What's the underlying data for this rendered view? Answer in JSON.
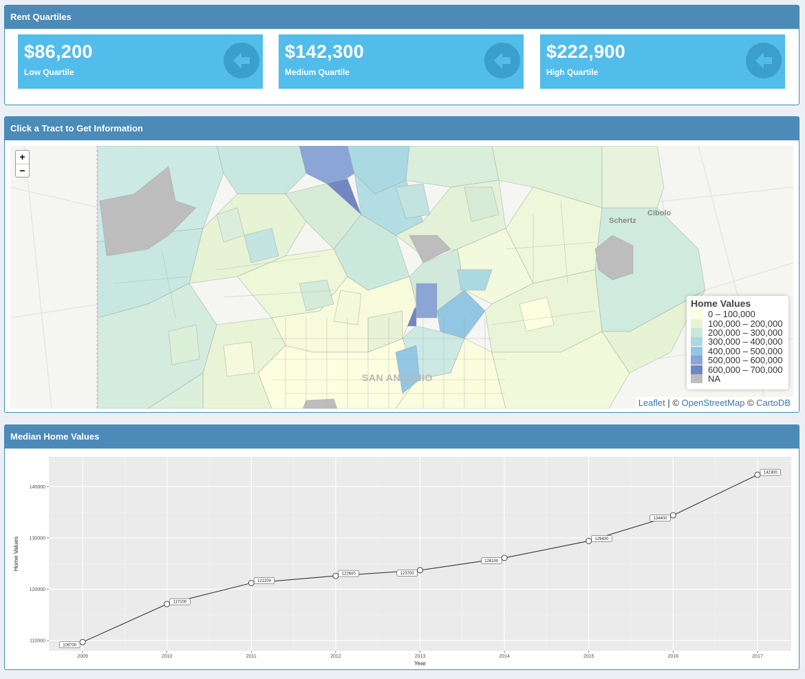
{
  "rent_quartiles": {
    "title": "Rent Quartiles",
    "boxes": [
      {
        "value": "$86,200",
        "label": "Low Quartile",
        "icon": "arrow-left-icon"
      },
      {
        "value": "$142,300",
        "label": "Medium Quartile",
        "icon": "arrow-left-icon"
      },
      {
        "value": "$222,900",
        "label": "High Quartile",
        "icon": "arrow-left-icon"
      }
    ],
    "colors": {
      "box": "#52bdeb",
      "icon_bg": "#3a9fcc"
    }
  },
  "map": {
    "title": "Click a Tract to Get Information",
    "zoom_in": "+",
    "zoom_out": "−",
    "labels": {
      "city": "SAN ANTONIO",
      "town1": "Schertz",
      "town2": "Cibolo"
    },
    "legend": {
      "title": "Home Values",
      "items": [
        {
          "label": "0 – 100,000",
          "color": "#fdfde0"
        },
        {
          "label": "100,000 – 200,000",
          "color": "#e6f3d4"
        },
        {
          "label": "200,000 – 300,000",
          "color": "#c8e7dc"
        },
        {
          "label": "300,000 – 400,000",
          "color": "#aad9e3"
        },
        {
          "label": "400,000 – 500,000",
          "color": "#93c6e2"
        },
        {
          "label": "500,000 – 600,000",
          "color": "#8aa5d6"
        },
        {
          "label": "600,000 – 700,000",
          "color": "#7186c3"
        },
        {
          "label": "NA",
          "color": "#bdbdbd"
        }
      ]
    },
    "attribution": {
      "leaflet": "Leaflet",
      "sep": " | © ",
      "osm": "OpenStreetMap",
      "sep2": " © ",
      "carto": "CartoDB"
    }
  },
  "median": {
    "title": "Median Home Values"
  },
  "chart_data": {
    "type": "line",
    "x": [
      2009,
      2010,
      2011,
      2012,
      2013,
      2014,
      2015,
      2016,
      2017
    ],
    "values": [
      109700,
      117100,
      121200,
      122600,
      123700,
      126100,
      129400,
      134400,
      142300
    ],
    "data_labels": [
      "109700",
      "117100",
      "121200",
      "122600",
      "123700",
      "126100",
      "129400",
      "134400",
      "142300"
    ],
    "title": "",
    "xlabel": "Year",
    "ylabel": "Home Values",
    "ylim": [
      108000,
      145800
    ],
    "xlim": [
      2008.6,
      2017.4
    ],
    "y_ticks": [
      110000,
      120000,
      130000,
      140000
    ],
    "y_tick_labels": [
      "110000",
      "120000",
      "130000",
      "140000"
    ],
    "grid": true,
    "legend": "none"
  }
}
